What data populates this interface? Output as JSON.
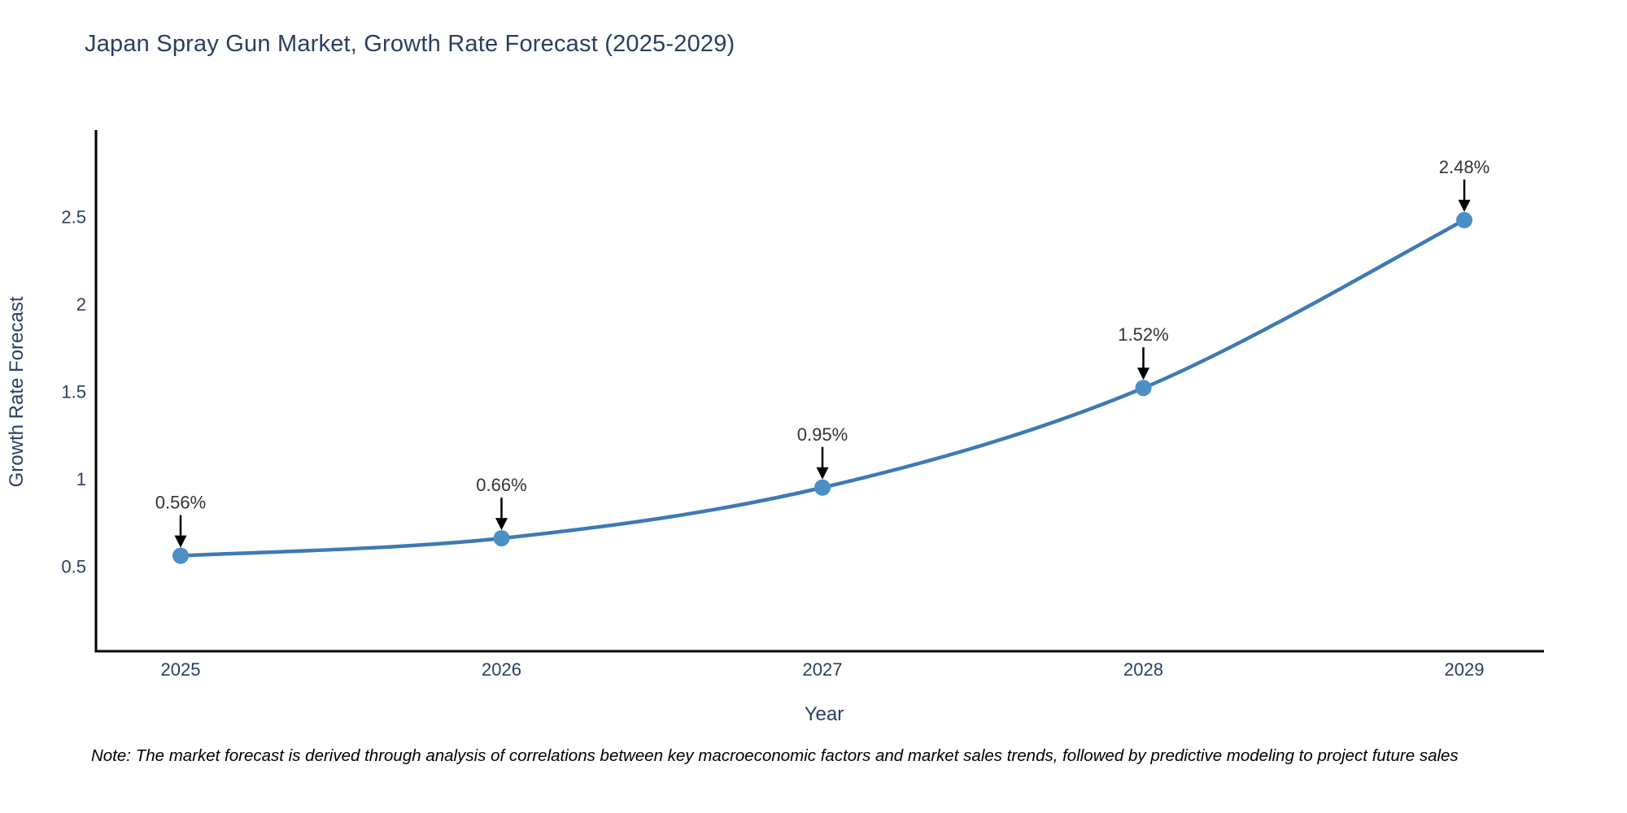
{
  "title": "Japan Spray Gun Market, Growth Rate Forecast (2025-2029)",
  "note": "Note: The market forecast is derived through analysis of correlations between key macroeconomic factors and market sales trends, followed by predictive modeling to project future sales",
  "chart_data": {
    "type": "line",
    "title": "Japan Spray Gun Market, Growth Rate Forecast (2025-2029)",
    "xlabel": "Year",
    "ylabel": "Growth Rate Forecast",
    "x": [
      2025,
      2026,
      2027,
      2028,
      2029
    ],
    "series": [
      {
        "name": "Growth Rate Forecast",
        "values": [
          0.56,
          0.66,
          0.95,
          1.52,
          2.48
        ]
      }
    ],
    "point_labels": [
      "0.56%",
      "0.66%",
      "0.95%",
      "1.52%",
      "2.48%"
    ],
    "yticks": [
      0.5,
      1,
      1.5,
      2,
      2.5
    ],
    "ylim": [
      0,
      3
    ],
    "line_shape": "spline",
    "grid": false,
    "legend": "none",
    "colors": {
      "line": "#3d7ab3",
      "marker": "#4a8fc6",
      "axis": "#000000",
      "tick_text": "#2a3f5f",
      "annotation_text": "#333333",
      "arrow": "#000000"
    }
  }
}
